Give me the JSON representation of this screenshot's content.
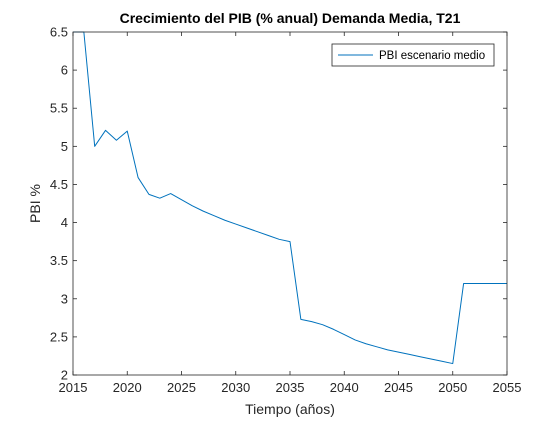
{
  "chart_data": {
    "type": "line",
    "title": "Crecimiento del PIB (% anual) Demanda Media, T21",
    "xlabel": "Tiempo (años)",
    "ylabel": "PBI %",
    "xlim": [
      2015,
      2055
    ],
    "ylim": [
      2,
      6.5
    ],
    "xticks": [
      2015,
      2020,
      2025,
      2030,
      2035,
      2040,
      2045,
      2050,
      2055
    ],
    "yticks": [
      2,
      2.5,
      3,
      3.5,
      4,
      4.5,
      5,
      5.5,
      6,
      6.5
    ],
    "xtick_labels": [
      "2015",
      "2020",
      "2025",
      "2030",
      "2035",
      "2040",
      "2045",
      "2050",
      "2055"
    ],
    "ytick_labels": [
      "2",
      "2.5",
      "3",
      "3.5",
      "4",
      "4.5",
      "5",
      "5.5",
      "6",
      "6.5"
    ],
    "grid": false,
    "legend_position": "top-right",
    "series": [
      {
        "name": "PBI escenario medio",
        "color": "#0072BD",
        "x": [
          2015,
          2016,
          2017,
          2018,
          2019,
          2020,
          2021,
          2022,
          2023,
          2024,
          2025,
          2026,
          2027,
          2028,
          2029,
          2030,
          2031,
          2032,
          2033,
          2034,
          2035,
          2036,
          2037,
          2038,
          2039,
          2040,
          2041,
          2042,
          2043,
          2044,
          2045,
          2046,
          2047,
          2048,
          2049,
          2050,
          2051,
          2052,
          2053,
          2054,
          2055
        ],
        "y": [
          6.5,
          6.5,
          5.0,
          5.21,
          5.08,
          5.2,
          4.59,
          4.37,
          4.32,
          4.38,
          4.3,
          4.22,
          4.15,
          4.09,
          4.03,
          3.98,
          3.93,
          3.88,
          3.83,
          3.78,
          3.75,
          2.73,
          2.7,
          2.66,
          2.6,
          2.53,
          2.46,
          2.41,
          2.37,
          2.33,
          2.3,
          2.27,
          2.24,
          2.21,
          2.18,
          2.15,
          3.2,
          3.2,
          3.2,
          3.2,
          3.2
        ]
      }
    ]
  }
}
